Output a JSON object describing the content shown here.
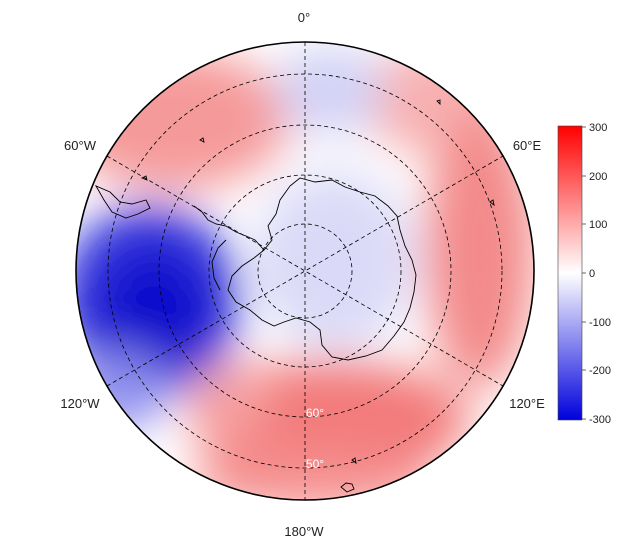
{
  "map": {
    "projection": "south-polar-stereographic",
    "longitude_labels": {
      "top": "0°",
      "upper_left": "60°W",
      "upper_right": "60°E",
      "lower_left": "120°W",
      "lower_right": "120°E",
      "bottom": "180°W"
    },
    "latitude_labels": {
      "inner": "60°",
      "outer": "50°"
    },
    "colors": {
      "high": "#ff0000",
      "neutral": "#ffffff",
      "low": "#0000dd",
      "coastline": "#000000",
      "grid": "#000000"
    }
  },
  "colorbar": {
    "ticks": [
      "300",
      "200",
      "100",
      "0",
      "-100",
      "-200",
      "-300"
    ],
    "min": -300,
    "max": 300
  }
}
